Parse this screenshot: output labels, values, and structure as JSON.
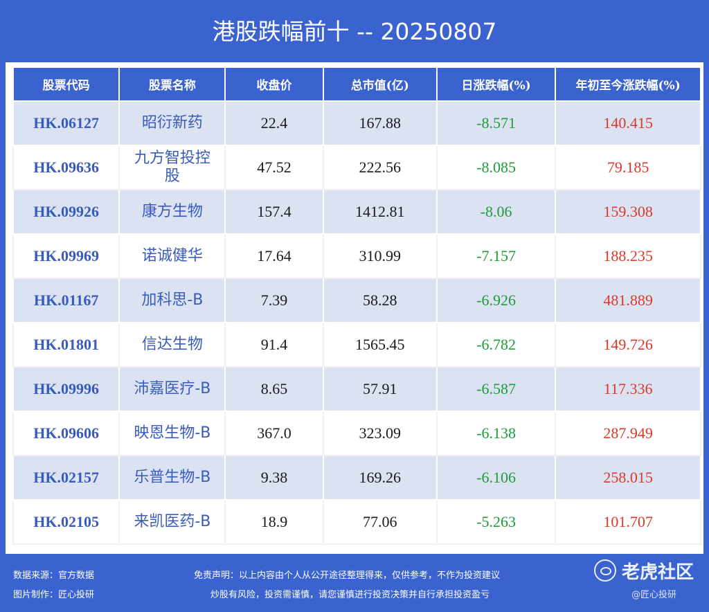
{
  "title": "港股跌幅前十 -- 20250807",
  "table": {
    "headers": [
      "股票代码",
      "股票名称",
      "收盘价",
      "总市值(亿)",
      "日涨跌幅(%)",
      "年初至今涨跌幅(%)"
    ],
    "rows": [
      {
        "code": "HK.06127",
        "name": "昭衍新药",
        "close": "22.4",
        "cap": "167.88",
        "day": "-8.571",
        "ytd": "140.415"
      },
      {
        "code": "HK.09636",
        "name": "九方智投控股",
        "close": "47.52",
        "cap": "222.56",
        "day": "-8.085",
        "ytd": "79.185"
      },
      {
        "code": "HK.09926",
        "name": "康方生物",
        "close": "157.4",
        "cap": "1412.81",
        "day": "-8.06",
        "ytd": "159.308"
      },
      {
        "code": "HK.09969",
        "name": "诺诚健华",
        "close": "17.64",
        "cap": "310.99",
        "day": "-7.157",
        "ytd": "188.235"
      },
      {
        "code": "HK.01167",
        "name": "加科思-B",
        "close": "7.39",
        "cap": "58.28",
        "day": "-6.926",
        "ytd": "481.889"
      },
      {
        "code": "HK.01801",
        "name": "信达生物",
        "close": "91.4",
        "cap": "1565.45",
        "day": "-6.782",
        "ytd": "149.726"
      },
      {
        "code": "HK.09996",
        "name": "沛嘉医疗-B",
        "close": "8.65",
        "cap": "57.91",
        "day": "-6.587",
        "ytd": "117.336"
      },
      {
        "code": "HK.09606",
        "name": "映恩生物-B",
        "close": "367.0",
        "cap": "323.09",
        "day": "-6.138",
        "ytd": "287.949"
      },
      {
        "code": "HK.02157",
        "name": "乐普生物-B",
        "close": "9.38",
        "cap": "169.26",
        "day": "-6.106",
        "ytd": "258.015"
      },
      {
        "code": "HK.02105",
        "name": "来凯医药-B",
        "close": "18.9",
        "cap": "77.06",
        "day": "-5.263",
        "ytd": "101.707"
      }
    ]
  },
  "footer": {
    "source": "数据来源：官方数据",
    "maker": "图片制作：匠心投研",
    "disclaimer1": "免责声明：以上内容由个人从公开途径整理得来，仅供参考，不作为投资建议",
    "disclaimer2": "炒股有风险，投资需谨慎，请您谨慎进行投资决策并自行承担投资盈亏",
    "logo_text": "老虎社区",
    "watermark": "@匠心投研"
  },
  "colors": {
    "background": "#3a63cf",
    "code": "#3a5bbb",
    "day_change": "#1f9a3a",
    "ytd_change": "#d8392b",
    "row_alt": "#dbe3f3"
  },
  "icons": {
    "logo": "tiger-community-logo-icon"
  }
}
